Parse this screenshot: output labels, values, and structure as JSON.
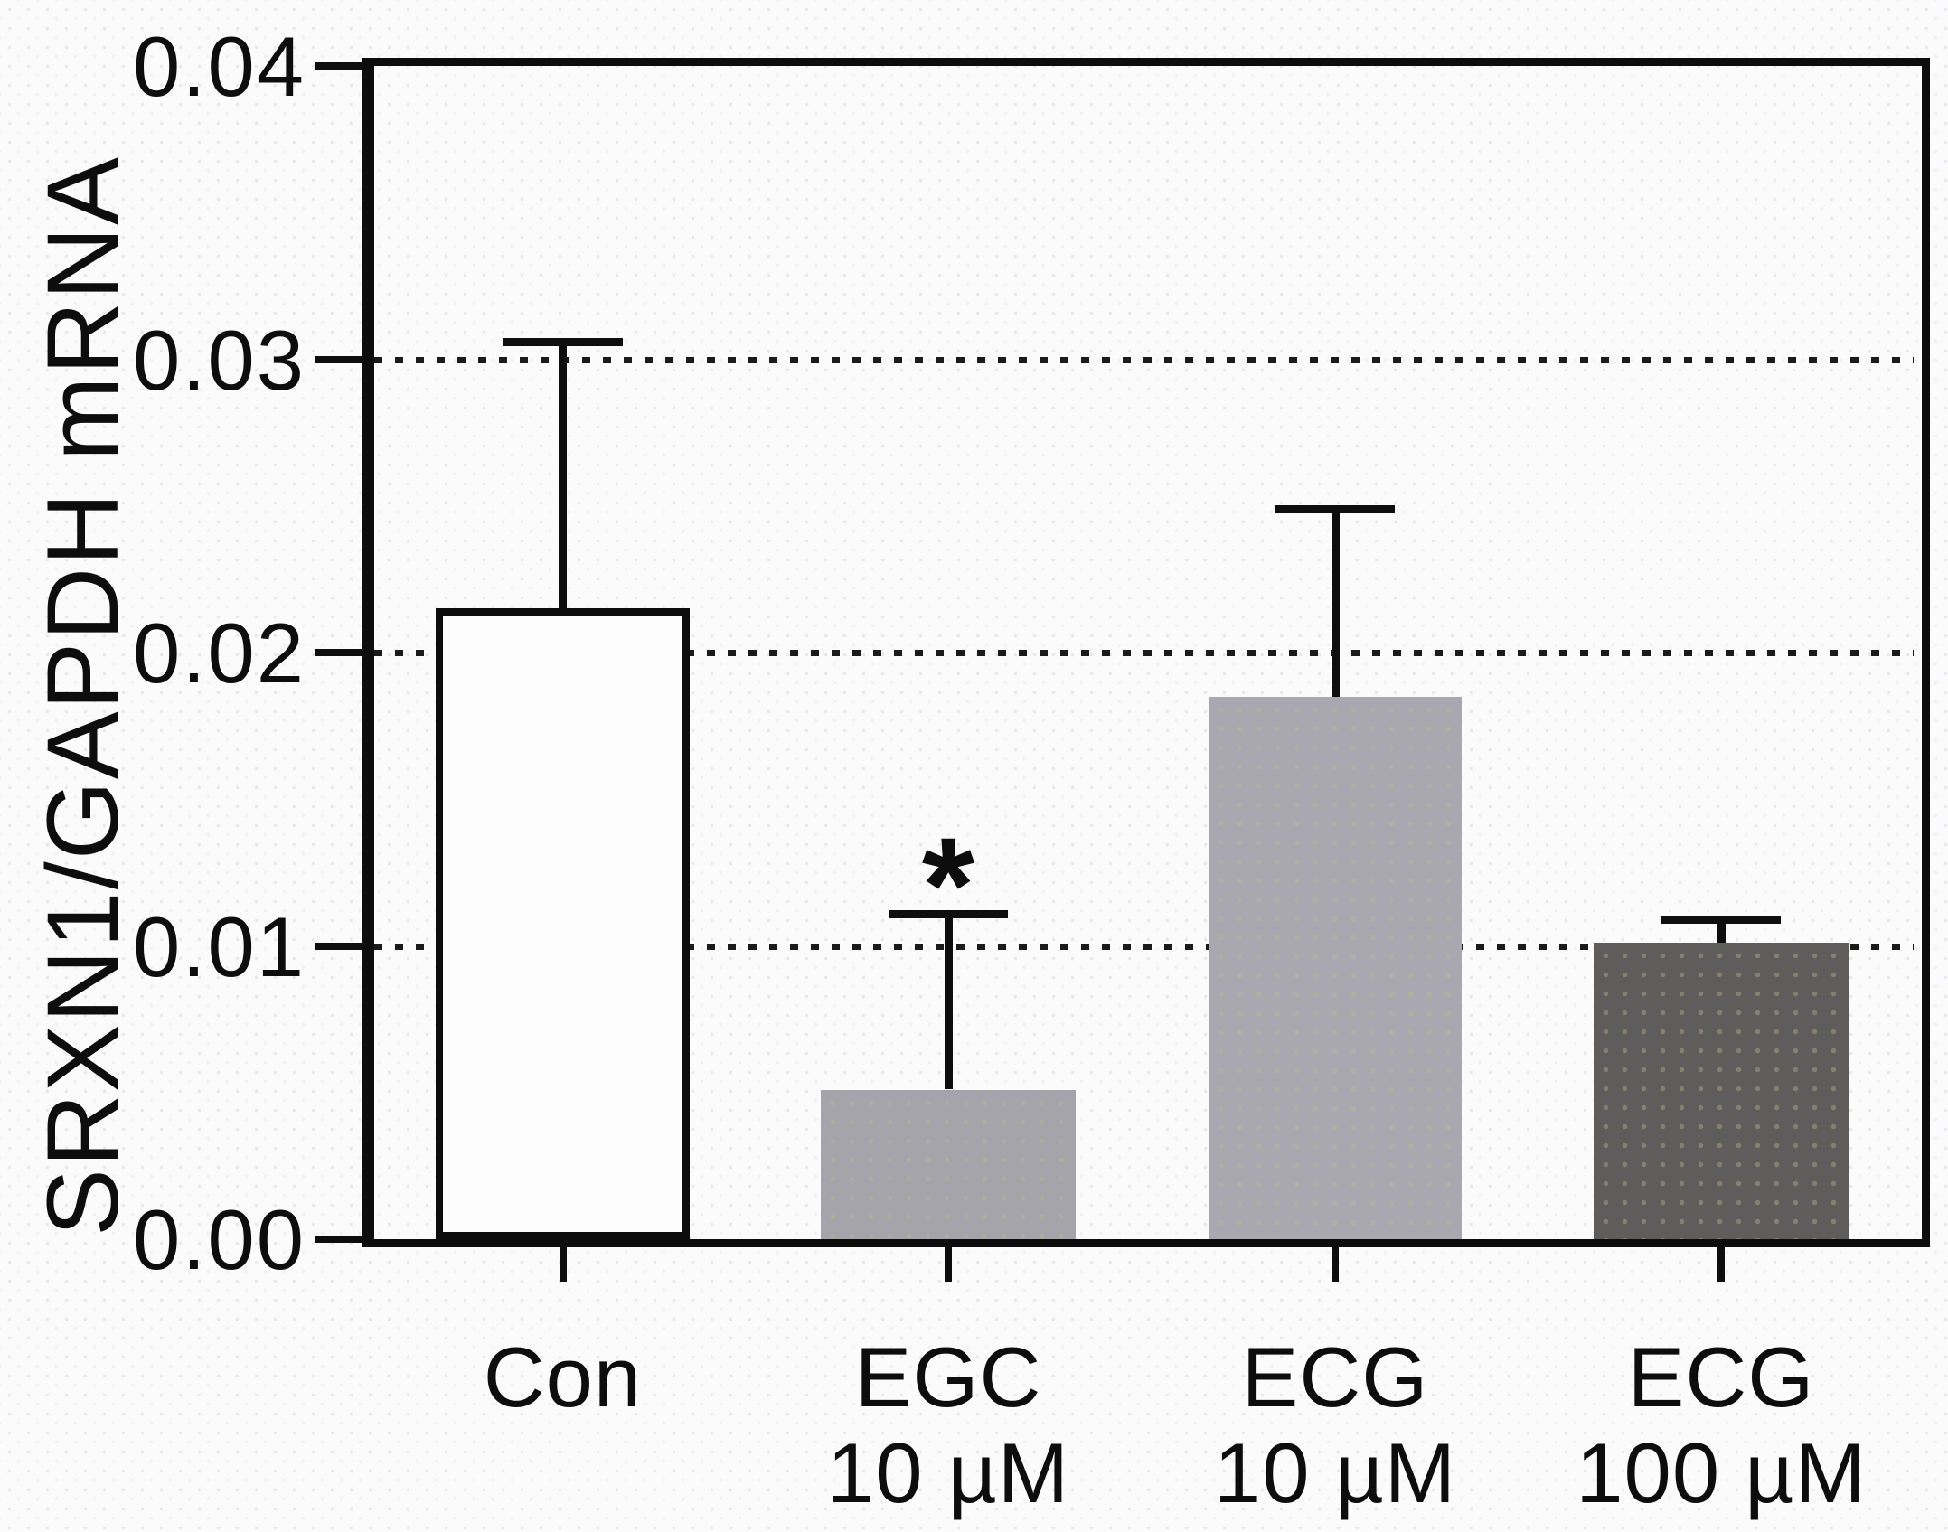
{
  "figure": {
    "ylabel": "SRXN1/GAPDH mRNA"
  },
  "chart_data": {
    "type": "bar",
    "title": "",
    "xlabel": "",
    "ylabel": "SRXN1/GAPDH mRNA",
    "categories": [
      "Con",
      "EGC 10 µM",
      "ECG 10 µM",
      "ECG 100 µM"
    ],
    "x_tick_lines": [
      [
        "Con"
      ],
      [
        "EGC",
        "10 µM"
      ],
      [
        "ECG",
        "10 µM"
      ],
      [
        "ECG",
        "100 µM"
      ]
    ],
    "values": [
      0.0215,
      0.0051,
      0.0185,
      0.0101
    ],
    "errors_upper": [
      0.0091,
      0.006,
      0.0064,
      0.0008
    ],
    "bar_colors": [
      "#fdfdfd",
      "#a5a4ab",
      "#a9a8b0",
      "#5f5d5c"
    ],
    "bar_border_color": "#0d0d0d",
    "bar_bordered": [
      true,
      false,
      false,
      false
    ],
    "annotations": [
      {
        "category_index": 1,
        "text": "*",
        "y": 0.0128
      }
    ],
    "ylim": [
      0,
      0.04
    ],
    "ytick_labels": [
      "0.00",
      "0.01",
      "0.02",
      "0.03",
      "0.04"
    ],
    "grid": {
      "horizontal_dotted_at": [
        0.01,
        0.02,
        0.03
      ]
    },
    "legend": null,
    "axis_color": "#0d0d0d"
  }
}
